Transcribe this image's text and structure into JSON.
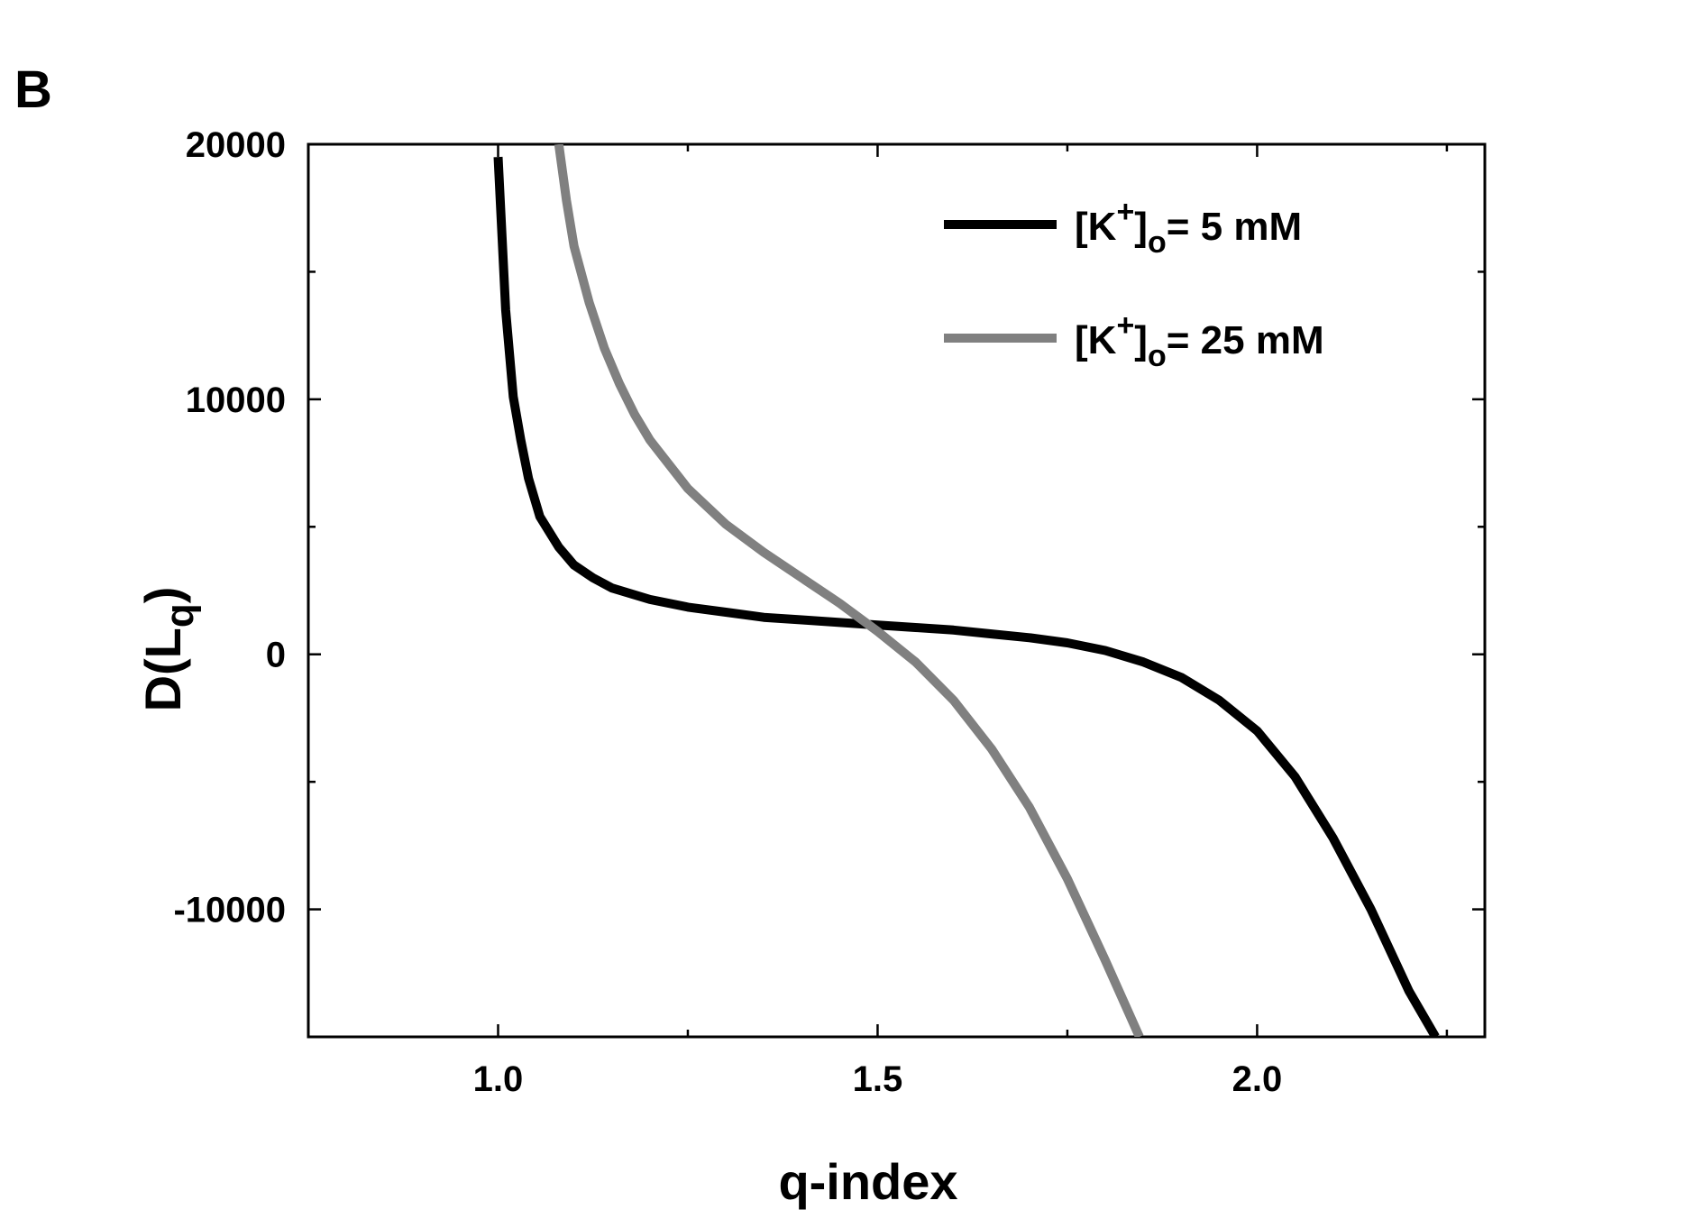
{
  "panel_label": "B",
  "chart_data": {
    "type": "line",
    "xlabel": "q-index",
    "ylabel": "D(L_q)",
    "ylabel_parts": {
      "main": "D(L",
      "sub": "q",
      "close": ")"
    },
    "xlim": [
      0.75,
      2.3
    ],
    "ylim": [
      -15000,
      20000
    ],
    "xticks": [
      1.0,
      1.5,
      2.0
    ],
    "xtick_labels": [
      "1.0",
      "1.5",
      "2.0"
    ],
    "yticks": [
      -10000,
      0,
      10000,
      20000
    ],
    "ytick_labels": [
      "-10000",
      "0",
      "10000",
      "20000"
    ],
    "grid": false,
    "legend_position": "top-right",
    "series": [
      {
        "name": "[K+]o= 5 mM",
        "name_parts": {
          "pre": "[K",
          "sup": "+",
          "mid": "]",
          "sub": "o",
          "post": "= 5 mM"
        },
        "color": "#000000",
        "x": [
          1.0,
          1.005,
          1.01,
          1.02,
          1.03,
          1.04,
          1.055,
          1.08,
          1.1,
          1.125,
          1.15,
          1.2,
          1.25,
          1.3,
          1.35,
          1.4,
          1.45,
          1.5,
          1.55,
          1.6,
          1.65,
          1.7,
          1.75,
          1.8,
          1.85,
          1.9,
          1.95,
          2.0,
          2.05,
          2.1,
          2.15,
          2.2,
          2.235
        ],
        "y": [
          19500,
          16500,
          13500,
          10100,
          8400,
          6900,
          5400,
          4200,
          3500,
          3000,
          2600,
          2150,
          1850,
          1650,
          1450,
          1350,
          1250,
          1150,
          1050,
          950,
          800,
          650,
          450,
          150,
          -300,
          -900,
          -1800,
          -3000,
          -4800,
          -7200,
          -10000,
          -13200,
          -15000
        ]
      },
      {
        "name": "[K+]o= 25 mM",
        "name_parts": {
          "pre": "[K",
          "sup": "+",
          "mid": "]",
          "sub": "o",
          "post": "= 25 mM"
        },
        "color": "#808080",
        "x": [
          1.08,
          1.09,
          1.1,
          1.12,
          1.14,
          1.16,
          1.18,
          1.2,
          1.25,
          1.3,
          1.35,
          1.4,
          1.45,
          1.5,
          1.55,
          1.6,
          1.65,
          1.7,
          1.75,
          1.8,
          1.845
        ],
        "y": [
          20000,
          17800,
          16000,
          13800,
          12000,
          10600,
          9400,
          8400,
          6500,
          5100,
          4000,
          3000,
          2000,
          900,
          -300,
          -1800,
          -3700,
          -6000,
          -8800,
          -12000,
          -15000
        ]
      }
    ]
  }
}
